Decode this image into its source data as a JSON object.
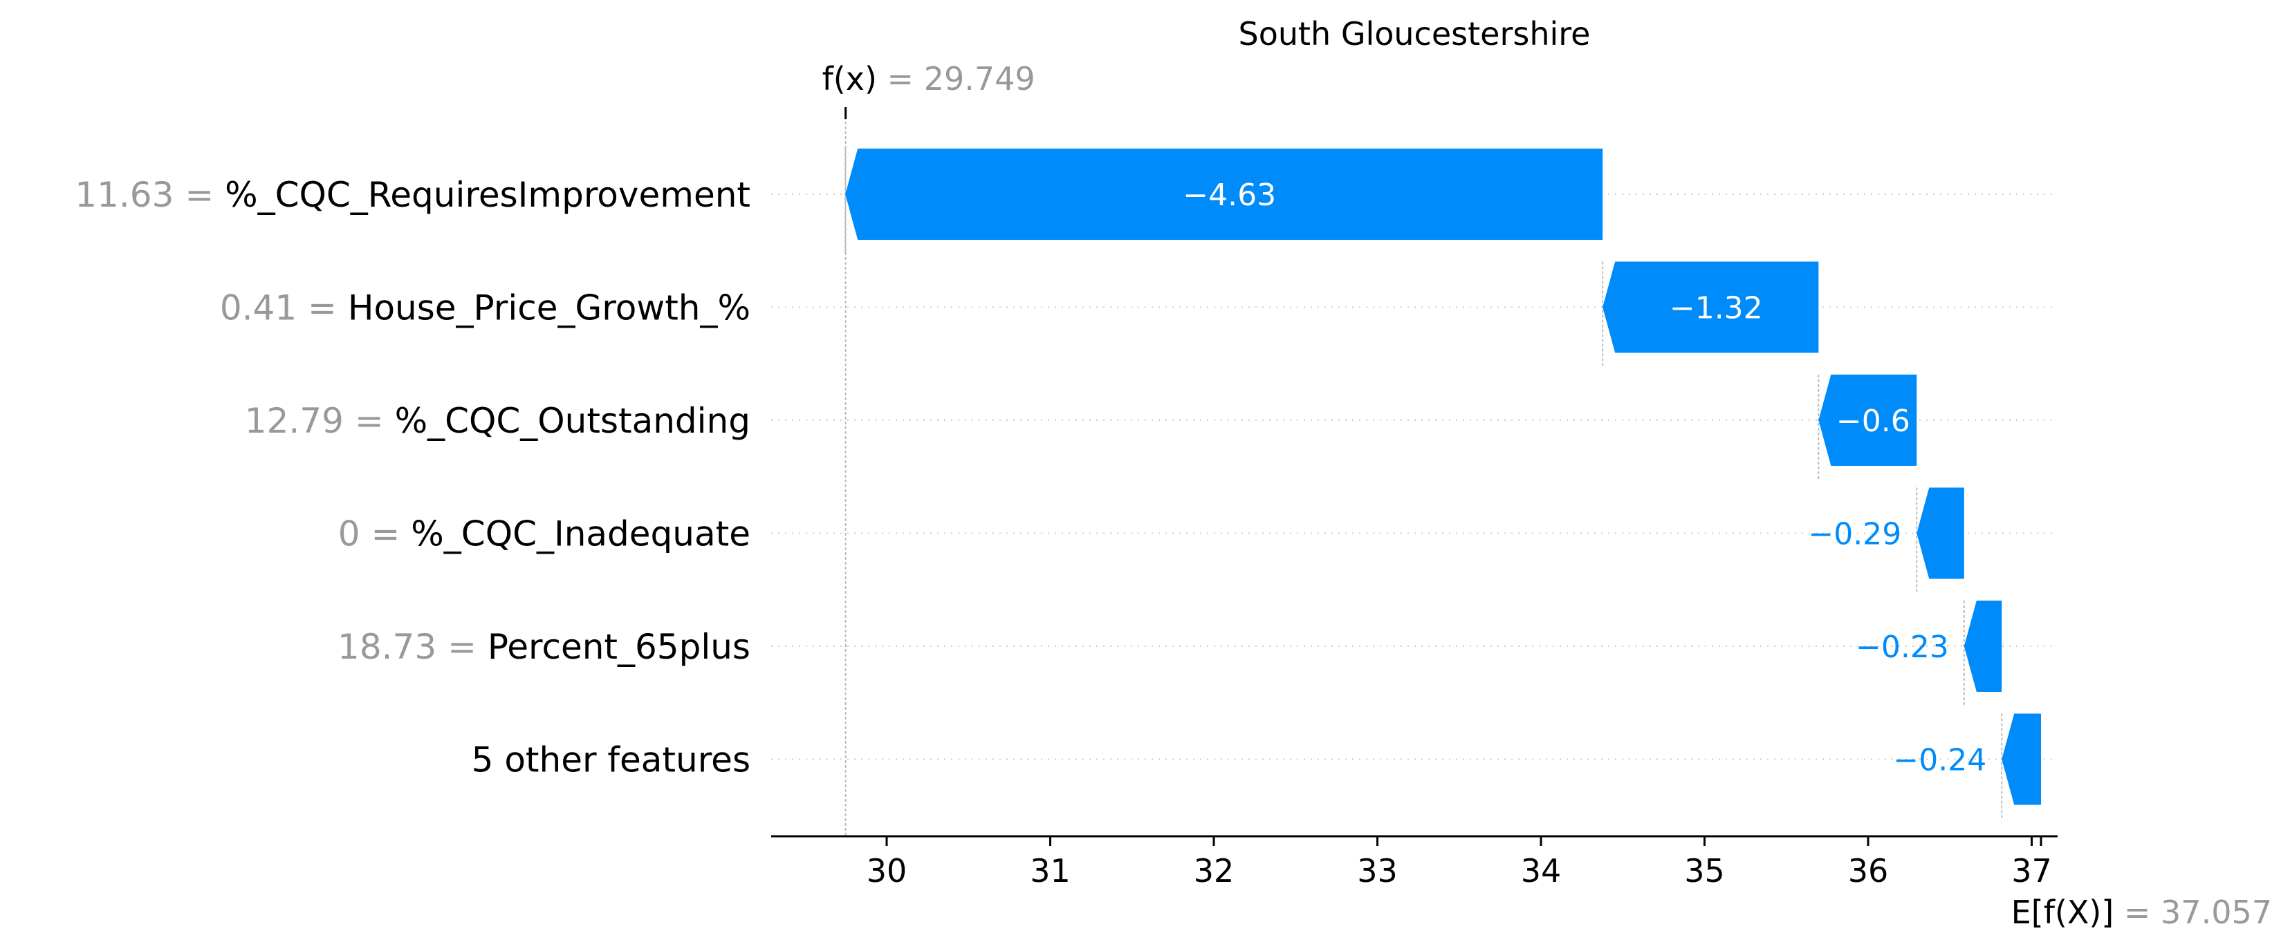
{
  "chart_data": {
    "type": "waterfall",
    "title": "South Gloucestershire",
    "f_x": {
      "label_italic": "f",
      "label_rest": "(x)",
      "equals": "=",
      "value": "29.749",
      "numeric": 29.749
    },
    "expected": {
      "label_prefix": "E[",
      "label_italic": "f",
      "label_rest": "(X)]",
      "equals": "=",
      "value": "37.057",
      "numeric": 37.057
    },
    "features": [
      {
        "value": "11.63",
        "name": "%_CQC_RequiresImprovement",
        "contribution": -4.63,
        "label": "−4.63"
      },
      {
        "value": "0.41",
        "name": "House_Price_Growth_%",
        "contribution": -1.32,
        "label": "−1.32"
      },
      {
        "value": "12.79",
        "name": "%_CQC_Outstanding",
        "contribution": -0.6,
        "label": "−0.6"
      },
      {
        "value": "0",
        "name": "%_CQC_Inadequate",
        "contribution": -0.29,
        "label": "−0.29"
      },
      {
        "value": "18.73",
        "name": "Percent_65plus",
        "contribution": -0.23,
        "label": "−0.23"
      },
      {
        "value": "",
        "name": "5 other features",
        "contribution": -0.24,
        "label": "−0.24"
      }
    ],
    "equals_sign": "=",
    "x_ticks": [
      30,
      31,
      32,
      33,
      34,
      35,
      36,
      37
    ],
    "x_tick_labels": [
      "30",
      "31",
      "32",
      "33",
      "34",
      "35",
      "36",
      "37"
    ],
    "xlim": [
      29.4,
      37.1
    ],
    "bar_color": "#008bfb",
    "grid": "horizontal dotted"
  }
}
